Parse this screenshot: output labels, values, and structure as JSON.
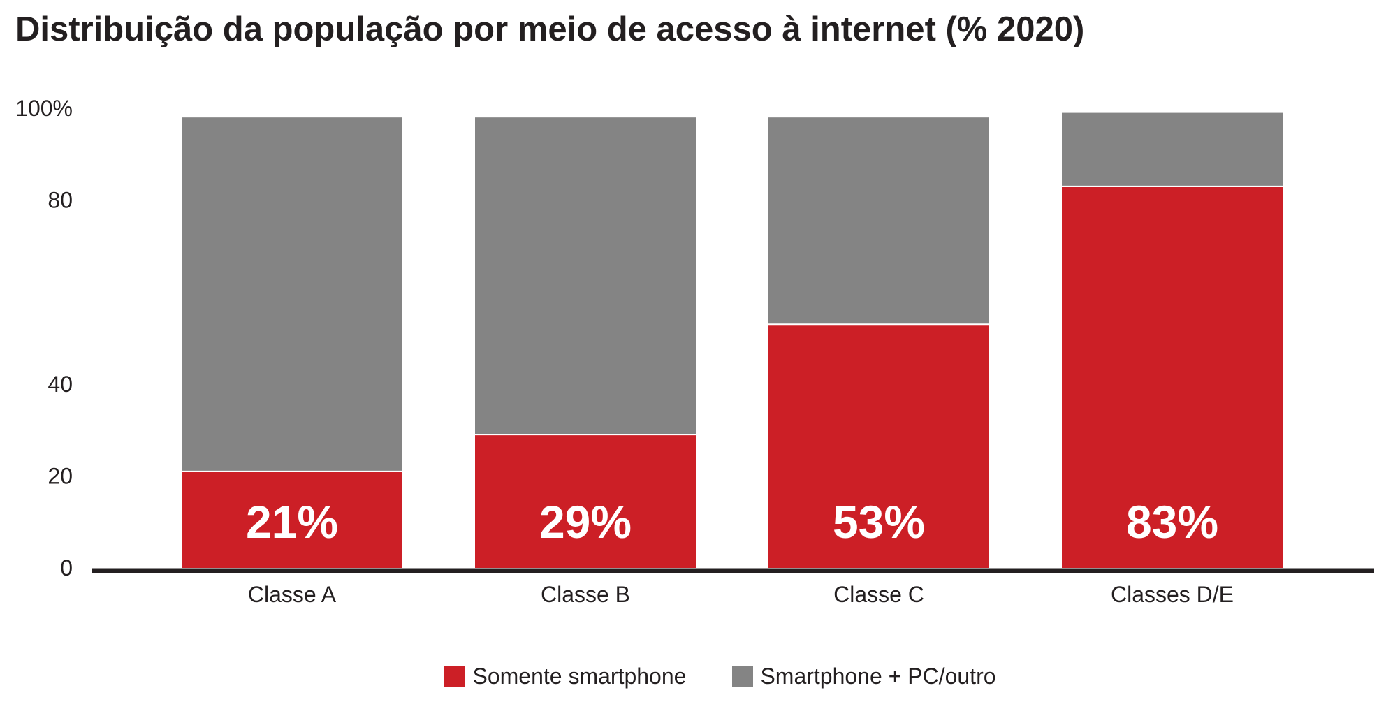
{
  "chart_data": {
    "type": "bar",
    "stacked": true,
    "title": "Distribuição da população por meio de acesso à internet (% 2020)",
    "categories": [
      "Classe A",
      "Classe B",
      "Classe C",
      "Classes D/E"
    ],
    "y_ticks": [
      "0",
      "20",
      "40",
      "80",
      "100%"
    ],
    "y_tick_values": [
      0,
      20,
      40,
      80,
      100
    ],
    "series": [
      {
        "name": "Somente smartphone",
        "color": "#cc1f26",
        "values": [
          21,
          29,
          53,
          83
        ],
        "labels": [
          "21%",
          "29%",
          "53%",
          "83%"
        ]
      },
      {
        "name": "Smartphone + PC/outro",
        "color": "#848484",
        "values": [
          77,
          69,
          45,
          16
        ]
      }
    ],
    "ylim": [
      0,
      100
    ],
    "grid": false,
    "legend_position": "bottom-center"
  }
}
